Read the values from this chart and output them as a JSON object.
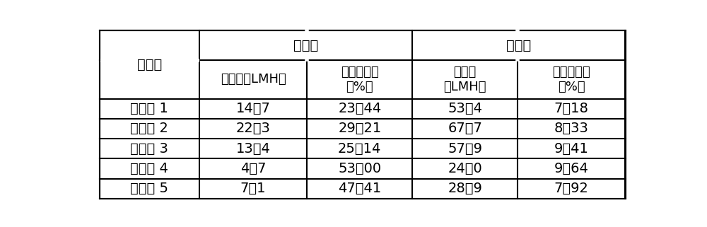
{
  "header1_left": "对比膜",
  "header1_right": "改性膜",
  "col0_header": "实施例",
  "col1_header": "水通量（LMH）",
  "col2_header_line1": "通量衰减率",
  "col2_header_line2": "（%）",
  "col3_header_line1": "水通量",
  "col3_header_line2": "（LMH）",
  "col4_header_line1": "通量衰减率",
  "col4_header_line2": "（%）",
  "rows": [
    [
      "实施例 1",
      "14．7",
      "23．44",
      "53．4",
      "7．18"
    ],
    [
      "实施例 2",
      "22．3",
      "29．21",
      "67．7",
      "8．33"
    ],
    [
      "实施例 3",
      "13．4",
      "25．14",
      "57．9",
      "9．41"
    ],
    [
      "实施例 4",
      "4．7",
      "53．00",
      "24．0",
      "9．64"
    ],
    [
      "实施例 5",
      "7．1",
      "47．41",
      "28．9",
      "7．92"
    ]
  ],
  "background_color": "#ffffff",
  "border_color": "#000000",
  "font_color": "#000000",
  "font_size": 14,
  "header_font_size": 14
}
